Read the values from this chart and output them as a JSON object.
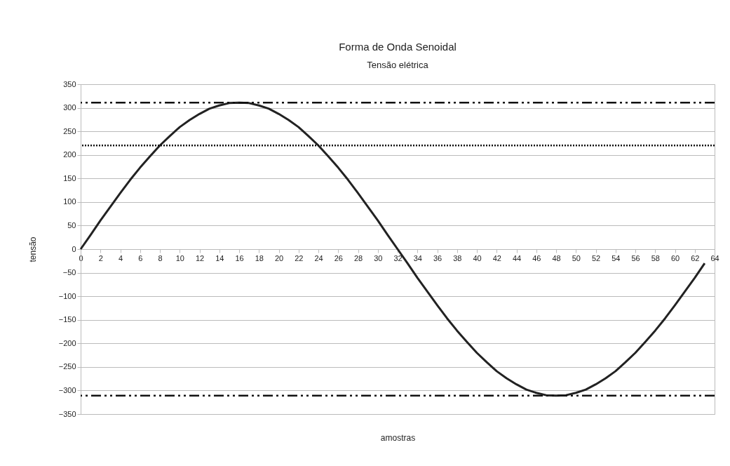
{
  "chart_data": {
    "type": "line",
    "title": "Forma de Onda Senoidal",
    "subtitle": "Tensão elétrica",
    "xlabel": "amostras",
    "ylabel": "tensão",
    "x": [
      0,
      1,
      2,
      3,
      4,
      5,
      6,
      7,
      8,
      9,
      10,
      11,
      12,
      13,
      14,
      15,
      16,
      17,
      18,
      19,
      20,
      21,
      22,
      23,
      24,
      25,
      26,
      27,
      28,
      29,
      30,
      31,
      32,
      33,
      34,
      35,
      36,
      37,
      38,
      39,
      40,
      41,
      42,
      43,
      44,
      45,
      46,
      47,
      48,
      49,
      50,
      51,
      52,
      53,
      54,
      55,
      56,
      57,
      58,
      59,
      60,
      61,
      62,
      63
    ],
    "series": [
      {
        "color": "#222222",
        "values": [
          0,
          30,
          61,
          90,
          119,
          147,
          173,
          197,
          220,
          240,
          259,
          274,
          287,
          298,
          305,
          310,
          311,
          310,
          305,
          298,
          287,
          274,
          259,
          240,
          220,
          197,
          173,
          147,
          119,
          90,
          61,
          30,
          0,
          -30,
          -61,
          -90,
          -119,
          -147,
          -173,
          -197,
          -220,
          -240,
          -259,
          -274,
          -287,
          -298,
          -305,
          -310,
          -311,
          -310,
          -305,
          -298,
          -287,
          -274,
          -259,
          -240,
          -220,
          -197,
          -173,
          -147,
          -119,
          -90,
          -61,
          -30
        ]
      }
    ],
    "xlim": [
      0,
      64
    ],
    "xticks": [
      0,
      2,
      4,
      6,
      8,
      10,
      12,
      14,
      16,
      18,
      20,
      22,
      24,
      26,
      28,
      30,
      32,
      34,
      36,
      38,
      40,
      42,
      44,
      46,
      48,
      50,
      52,
      54,
      56,
      58,
      60,
      62,
      64
    ],
    "ylim": [
      -350,
      350
    ],
    "yticks": [
      -350,
      -300,
      -250,
      -200,
      -150,
      -100,
      -50,
      0,
      50,
      100,
      150,
      200,
      250,
      300,
      350
    ],
    "grid": "y",
    "marker": "none",
    "line_style": "solid",
    "ref_lines": [
      {
        "axis": "y",
        "value": 311,
        "color": "#111111",
        "line_style": "dashed"
      },
      {
        "axis": "y",
        "value": 220,
        "color": "#111111",
        "line_style": "dotted"
      },
      {
        "axis": "y",
        "value": -311,
        "color": "#111111",
        "line_style": "dashed"
      }
    ]
  }
}
